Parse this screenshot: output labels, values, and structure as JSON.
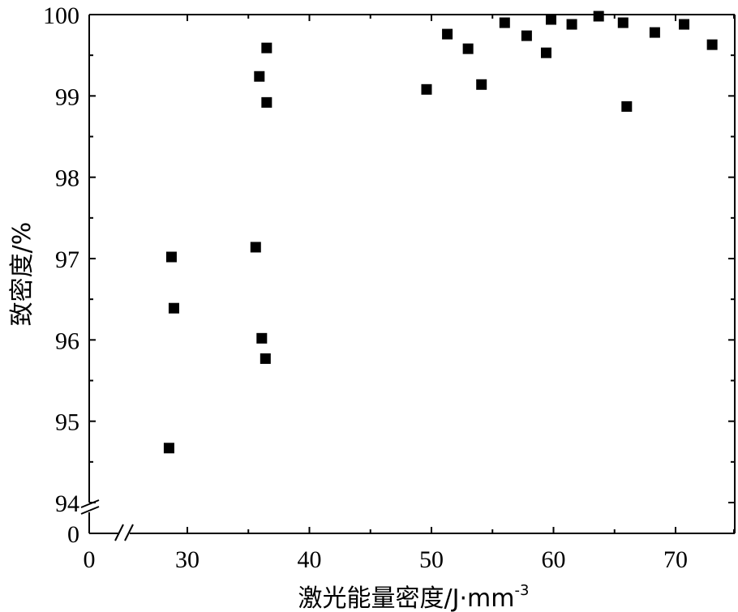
{
  "chart_data": {
    "type": "scatter",
    "xlabel": "激光能量密度/J·mm",
    "xlabel_sup": "-3",
    "ylabel": "致密度/%",
    "x_tick_labels": [
      "0",
      "30",
      "40",
      "50",
      "60",
      "70"
    ],
    "y_tick_labels": [
      "0",
      "94",
      "95",
      "96",
      "97",
      "98",
      "99",
      "100"
    ],
    "xlim": [
      20,
      75
    ],
    "ylim": [
      94,
      100
    ],
    "x_axis_break": true,
    "y_axis_break": true,
    "grid": false,
    "marker": "square",
    "marker_color": "#000000",
    "points": [
      {
        "x": 28.5,
        "y": 94.67
      },
      {
        "x": 28.7,
        "y": 97.02
      },
      {
        "x": 28.9,
        "y": 96.39
      },
      {
        "x": 35.6,
        "y": 97.14
      },
      {
        "x": 35.9,
        "y": 99.24
      },
      {
        "x": 36.1,
        "y": 96.02
      },
      {
        "x": 36.4,
        "y": 95.77
      },
      {
        "x": 36.5,
        "y": 99.59
      },
      {
        "x": 36.5,
        "y": 98.92
      },
      {
        "x": 49.6,
        "y": 99.08
      },
      {
        "x": 51.3,
        "y": 99.76
      },
      {
        "x": 53.0,
        "y": 99.58
      },
      {
        "x": 54.1,
        "y": 99.14
      },
      {
        "x": 56.0,
        "y": 99.9
      },
      {
        "x": 57.8,
        "y": 99.74
      },
      {
        "x": 59.4,
        "y": 99.53
      },
      {
        "x": 59.8,
        "y": 99.94
      },
      {
        "x": 61.5,
        "y": 99.88
      },
      {
        "x": 63.7,
        "y": 99.98
      },
      {
        "x": 65.7,
        "y": 99.9
      },
      {
        "x": 66.0,
        "y": 98.87
      },
      {
        "x": 68.3,
        "y": 99.78
      },
      {
        "x": 70.7,
        "y": 99.88
      },
      {
        "x": 73.0,
        "y": 99.63
      }
    ]
  }
}
